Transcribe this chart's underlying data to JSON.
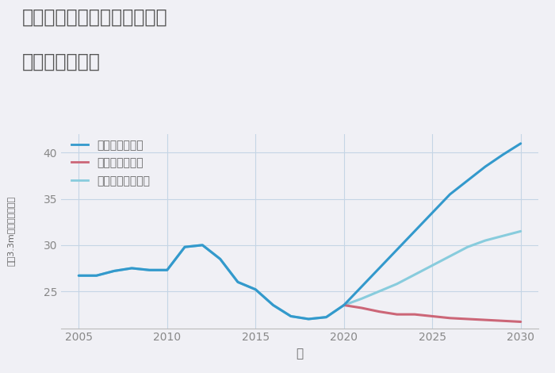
{
  "title_line1": "兵庫県三田市つつじが丘南の",
  "title_line2": "土地の価格推移",
  "xlabel": "年",
  "ylabel": "坪（3.3m）単価（万円）",
  "background_color": "#f0f0f5",
  "plot_background_color": "#f0f0f5",
  "grid_color": "#c5d5e5",
  "ylim": [
    21,
    42
  ],
  "xlim": [
    2004,
    2031
  ],
  "yticks": [
    25,
    30,
    35,
    40
  ],
  "xticks": [
    2005,
    2010,
    2015,
    2020,
    2025,
    2030
  ],
  "good_scenario": {
    "label": "グッドシナリオ",
    "color": "#3399cc",
    "linewidth": 2.2,
    "x": [
      2005,
      2006,
      2007,
      2008,
      2009,
      2010,
      2011,
      2012,
      2013,
      2014,
      2015,
      2016,
      2017,
      2018,
      2019,
      2020,
      2021,
      2022,
      2023,
      2024,
      2025,
      2026,
      2027,
      2028,
      2029,
      2030
    ],
    "y": [
      26.7,
      26.7,
      27.2,
      27.5,
      27.3,
      27.3,
      29.8,
      30.0,
      28.5,
      26.0,
      25.2,
      23.5,
      22.3,
      22.0,
      22.2,
      23.5,
      25.5,
      27.5,
      29.5,
      31.5,
      33.5,
      35.5,
      37.0,
      38.5,
      39.8,
      41.0
    ]
  },
  "bad_scenario": {
    "label": "バッドシナリオ",
    "color": "#cc6677",
    "linewidth": 2.2,
    "x": [
      2020,
      2021,
      2022,
      2023,
      2024,
      2025,
      2026,
      2027,
      2028,
      2029,
      2030
    ],
    "y": [
      23.5,
      23.2,
      22.8,
      22.5,
      22.5,
      22.3,
      22.1,
      22.0,
      21.9,
      21.8,
      21.7
    ]
  },
  "normal_scenario": {
    "label": "ノーマルシナリオ",
    "color": "#88ccdd",
    "linewidth": 2.2,
    "x": [
      2005,
      2006,
      2007,
      2008,
      2009,
      2010,
      2011,
      2012,
      2013,
      2014,
      2015,
      2016,
      2017,
      2018,
      2019,
      2020,
      2021,
      2022,
      2023,
      2024,
      2025,
      2026,
      2027,
      2028,
      2029,
      2030
    ],
    "y": [
      26.7,
      26.7,
      27.2,
      27.5,
      27.3,
      27.3,
      29.8,
      30.0,
      28.5,
      26.0,
      25.2,
      23.5,
      22.3,
      22.0,
      22.2,
      23.5,
      24.2,
      25.0,
      25.8,
      26.8,
      27.8,
      28.8,
      29.8,
      30.5,
      31.0,
      31.5
    ]
  },
  "title_color": "#555555",
  "tick_color": "#888888",
  "label_color": "#666666"
}
